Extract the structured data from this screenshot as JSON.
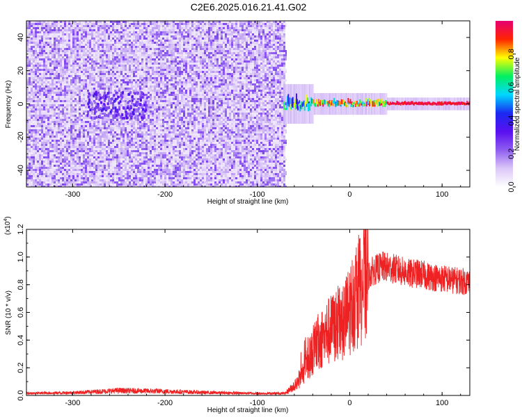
{
  "title": "C2E6.2025.016.21.41.G02",
  "colors": {
    "snr_line": "#ee2222",
    "colormap": [
      "#ffffff",
      "#dcc8f8",
      "#8f5ef0",
      "#5a0ff0",
      "#1a2af0",
      "#00d8ff",
      "#00f060",
      "#ffff00",
      "#ff2400",
      "#e60073"
    ]
  },
  "chart_data": [
    {
      "type": "heatmap",
      "xlabel": "Height of straight line (km)",
      "ylabel": "Frequency (Hz)",
      "xlim": [
        -350,
        130
      ],
      "ylim": [
        -50,
        50
      ],
      "x_ticks": [
        -300,
        -200,
        -100,
        0,
        100
      ],
      "y_ticks": [
        -40,
        -20,
        0,
        20,
        40
      ],
      "colorbar": {
        "label": "Normalized spectral amplitude",
        "range": [
          0,
          1
        ],
        "ticks": [
          0.0,
          0.2,
          0.4,
          0.6,
          0.8
        ]
      },
      "regions": [
        {
          "x_range": [
            -350,
            -70
          ],
          "freq_range": [
            -50,
            50
          ],
          "level": "low noise 0.05-0.25"
        },
        {
          "x_range": [
            -285,
            -220
          ],
          "freq_range": [
            -8,
            8
          ],
          "level": "0.2-0.35"
        },
        {
          "x_range": [
            -72,
            -40
          ],
          "freq_range": [
            -5,
            6
          ],
          "level": "0.3-0.8"
        },
        {
          "x_range": [
            -40,
            40
          ],
          "freq_range": [
            -2,
            3
          ],
          "level": "0.5-1.0"
        },
        {
          "x_range": [
            40,
            130
          ],
          "freq_range": [
            -1,
            1
          ],
          "level": "0.9-1.0"
        }
      ]
    },
    {
      "type": "line",
      "xlabel": "Height of straight line (km)",
      "ylabel": "SNR (10 * v/v)",
      "y_multiplier": "(x10",
      "y_exponent": "4",
      "xlim": [
        -350,
        130
      ],
      "ylim": [
        0,
        12000
      ],
      "x_ticks": [
        -300,
        -200,
        -100,
        0,
        100
      ],
      "y_ticks": [
        0,
        2000,
        4000,
        6000,
        8000,
        10000,
        12000
      ],
      "y_tick_labels": [
        "0.0",
        "0.2",
        "0.4",
        "0.6",
        "0.8",
        "1.0",
        "1.2"
      ],
      "series": [
        {
          "x": [
            -350,
            -300,
            -250,
            -200,
            -150,
            -100,
            -70,
            -55,
            -45,
            -35,
            -25,
            -15,
            -5,
            5,
            15,
            25,
            35,
            45,
            55,
            65,
            75,
            85,
            95,
            105,
            115,
            130
          ],
          "y": [
            150,
            200,
            350,
            300,
            200,
            150,
            150,
            1000,
            2500,
            3800,
            4500,
            5000,
            5500,
            7000,
            8200,
            9000,
            9300,
            9200,
            9000,
            8800,
            8800,
            8600,
            8500,
            8400,
            8300,
            8200
          ]
        }
      ]
    }
  ]
}
